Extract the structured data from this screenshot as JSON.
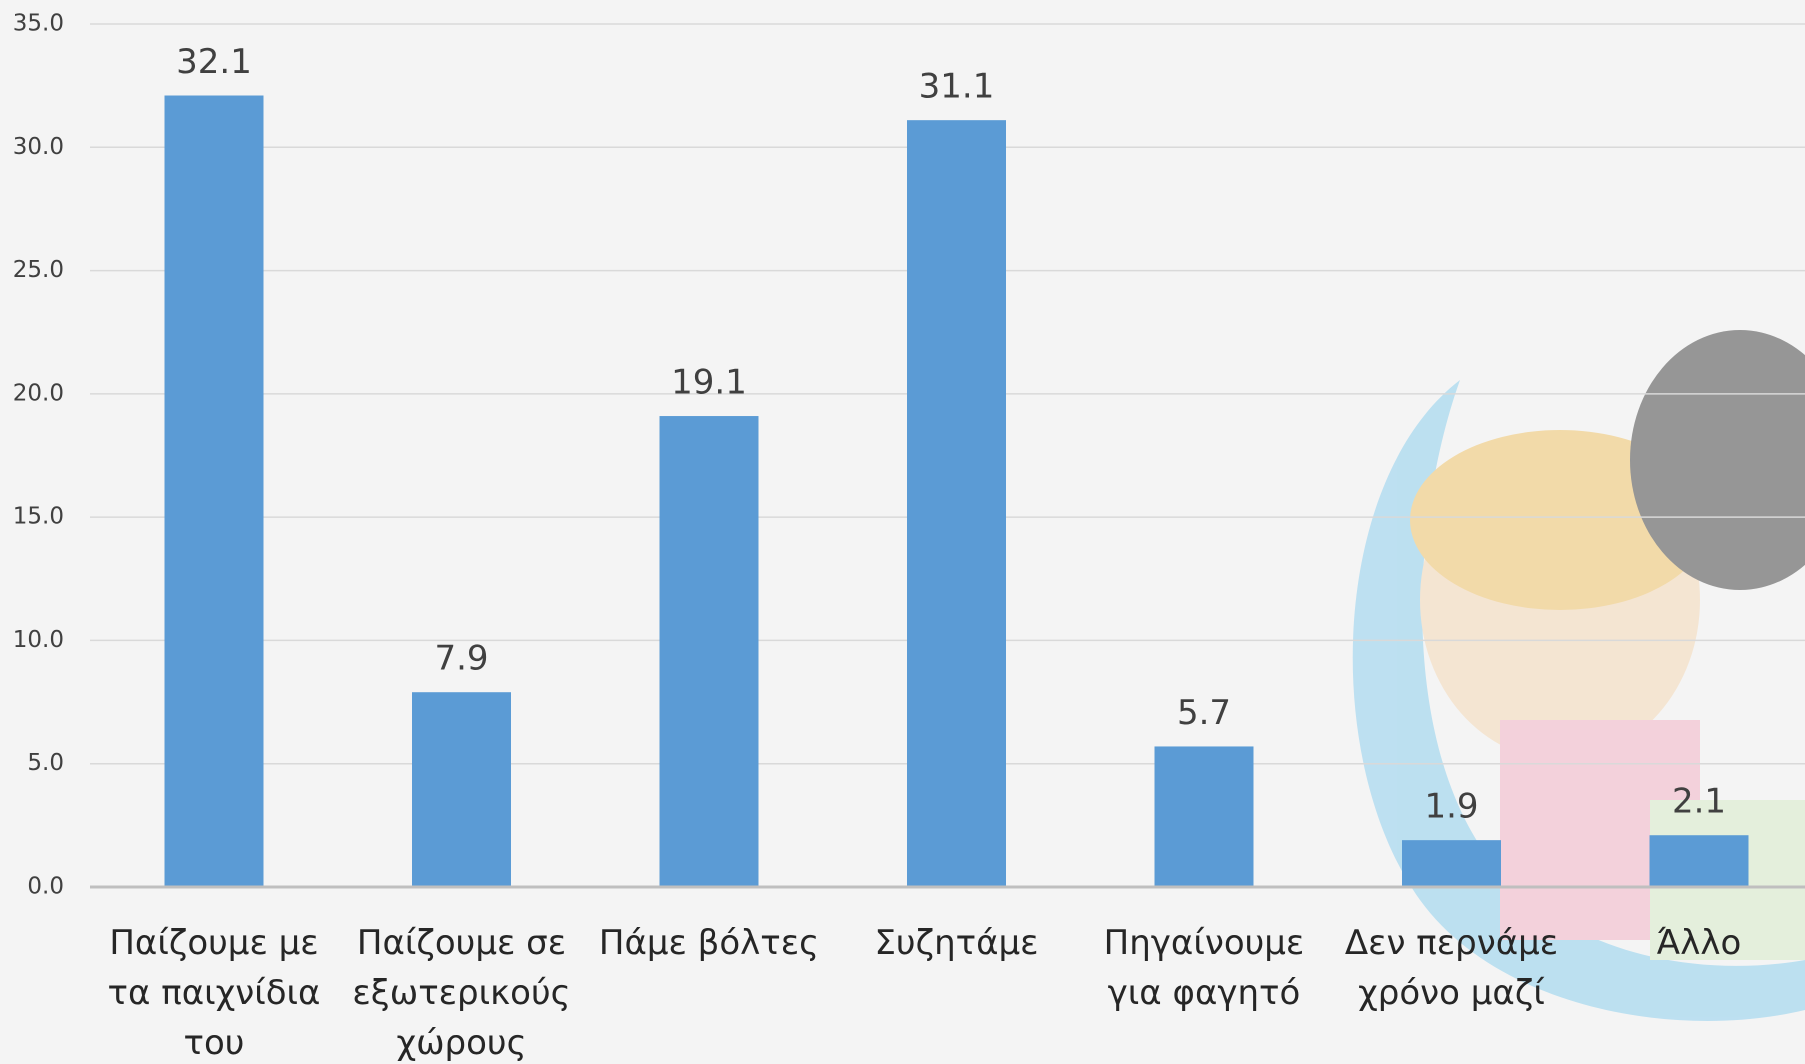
{
  "chart_data": {
    "type": "bar",
    "categories": [
      "Παίζουμε με τα παιχνίδια του",
      "Παίζουμε σε εξωτερικούς χώρους",
      "Πάμε βόλτες",
      "Συζητάμε",
      "Πηγαίνουμε για φαγητό",
      "Δεν περνάμε χρόνο μαζί",
      "Άλλο"
    ],
    "values": [
      32.1,
      7.9,
      19.1,
      31.1,
      5.7,
      1.9,
      2.1
    ],
    "color": "#5b9bd5",
    "ylim": [
      0,
      35
    ],
    "yticks": [
      {
        "value": 0,
        "label": "0.0"
      },
      {
        "value": 5,
        "label": "5.0"
      },
      {
        "value": 10,
        "label": "10.0"
      },
      {
        "value": 15,
        "label": "15.0"
      },
      {
        "value": 20,
        "label": "20.0"
      },
      {
        "value": 25,
        "label": "25.0"
      },
      {
        "value": 30,
        "label": "30.0"
      },
      {
        "value": 35,
        "label": "35.0"
      }
    ],
    "grid": true
  }
}
